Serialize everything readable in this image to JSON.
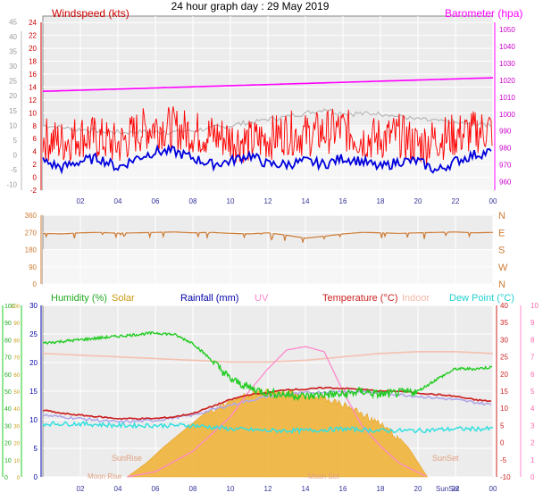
{
  "colors": {
    "wind_avg": "#0000dd",
    "wind_gust": "#ff0000",
    "baro": "#ff00ff",
    "humidity": "#22cc22",
    "solar": "#f0b030",
    "rainfall": "#0000aa",
    "uv": "#ff88cc",
    "temperature": "#cc2222",
    "indoor": "#f4c0b0",
    "dewpoint": "#33e0e0",
    "wind_dir": "#cc7a33",
    "grey_trace": "#b8b8b8",
    "plot_bg": "#ececec"
  },
  "chart_data": [
    {
      "type": "line",
      "title": "24 hour graph day : 29 May 2019",
      "left_axis": {
        "label": "Windspeed (kts)",
        "ticks": [
          "-2",
          "0",
          "2",
          "4",
          "6",
          "8",
          "10",
          "12",
          "14",
          "16",
          "18",
          "20",
          "22",
          "24"
        ],
        "range": [
          -2,
          25
        ]
      },
      "outer_left_axis": {
        "ticks": [
          "-10",
          "-5",
          "0",
          "5",
          "10",
          "15",
          "20",
          "25",
          "30",
          "35",
          "40",
          "45"
        ],
        "range": [
          -12,
          47
        ]
      },
      "right_axis": {
        "label": "Barometer (hpa)",
        "ticks": [
          "960",
          "970",
          "980",
          "990",
          "1000",
          "1010",
          "1020",
          "1030",
          "1040",
          "1050"
        ],
        "range": [
          955,
          1058
        ]
      },
      "x_ticks": [
        "02",
        "04",
        "06",
        "08",
        "10",
        "12",
        "14",
        "16",
        "18",
        "20",
        "22",
        "00"
      ],
      "x_range": [
        0,
        24
      ],
      "series": [
        {
          "name": "Barometer",
          "axis": "right",
          "x": [
            0,
            6,
            12,
            18,
            24
          ],
          "values": [
            1013.5,
            1015.5,
            1017.5,
            1019.5,
            1021.5
          ]
        },
        {
          "name": "",
          "axis": "outer-left",
          "x": [
            0,
            2,
            4,
            6,
            8,
            10,
            12,
            14,
            15,
            16,
            18,
            20,
            22,
            24
          ],
          "values": [
            10,
            8.5,
            7.5,
            7.8,
            8,
            10,
            12,
            14,
            15.5,
            14,
            14,
            12,
            11,
            10
          ]
        },
        {
          "name": "",
          "axis": "left",
          "x": [
            0,
            1,
            2,
            3,
            4,
            5,
            6,
            7,
            8,
            9,
            10,
            11,
            12,
            13,
            14,
            15,
            16,
            17,
            18,
            19,
            20,
            21,
            22,
            23,
            24
          ],
          "values": [
            6,
            5.5,
            6.5,
            6,
            5,
            7,
            8,
            7.5,
            7,
            6.5,
            6,
            5.5,
            6,
            7,
            6.5,
            7,
            7.5,
            6,
            6,
            6.5,
            5,
            6,
            6.5,
            7,
            7.5
          ]
        },
        {
          "name": "",
          "axis": "left",
          "x": [
            0,
            1,
            2,
            3,
            4,
            5,
            6,
            7,
            8,
            9,
            10,
            11,
            12,
            13,
            14,
            15,
            16,
            17,
            18,
            19,
            20,
            21,
            22,
            23,
            24
          ],
          "values": [
            2.5,
            1.5,
            2.5,
            3,
            1.5,
            3,
            4,
            4,
            3,
            2,
            2.5,
            3.5,
            2,
            2,
            2.5,
            2,
            3,
            2.5,
            1.5,
            2.5,
            2.5,
            1,
            2.5,
            3.5,
            4
          ]
        }
      ]
    },
    {
      "type": "line",
      "left_axis": {
        "ticks": [
          "0",
          "90",
          "180",
          "270",
          "360"
        ],
        "range": [
          0,
          360
        ]
      },
      "right_axis": {
        "ticks": [
          "N",
          "W",
          "S",
          "E",
          "N"
        ]
      },
      "x_range": [
        0,
        24
      ],
      "series": [
        {
          "name": "",
          "x": [
            0,
            1,
            2,
            3,
            4,
            5,
            6,
            7,
            8,
            9,
            10,
            11,
            12,
            13,
            14,
            15,
            16,
            17,
            18,
            19,
            20,
            21,
            22,
            23,
            24
          ],
          "values": [
            265,
            262,
            268,
            270,
            266,
            268,
            270,
            272,
            268,
            270,
            265,
            262,
            268,
            255,
            240,
            250,
            262,
            270,
            268,
            265,
            268,
            270,
            272,
            268,
            270
          ]
        }
      ]
    },
    {
      "type": "line",
      "legend": [
        "Humidity (%)",
        "Solar",
        "Rainfall (mm)",
        "UV",
        "Temperature (°C)",
        "Indoor",
        "Dew Point (°C)"
      ],
      "humidity_axis": {
        "ticks": [
          "0",
          "10",
          "20",
          "30",
          "40",
          "50",
          "60",
          "70",
          "80",
          "90",
          "100"
        ],
        "range": [
          0,
          100
        ]
      },
      "solar_axis": {
        "ticks": [
          "0",
          "5",
          "10",
          "15",
          "20",
          "25",
          "30",
          "35",
          "40",
          "45",
          "50",
          "55",
          "60",
          "65",
          "70",
          "75",
          "80",
          "85",
          "90",
          "95",
          "100"
        ],
        "range": [
          0,
          100
        ]
      },
      "rain_axis": {
        "ticks": [
          "0",
          "5",
          "10",
          "15",
          "20",
          "25",
          "30"
        ],
        "range": [
          0,
          30
        ]
      },
      "temp_axis": {
        "ticks": [
          "-10",
          "-5",
          "0",
          "5",
          "10",
          "15",
          "20",
          "25",
          "30",
          "35",
          "40"
        ],
        "range": [
          -10,
          40
        ]
      },
      "uv_axis": {
        "ticks": [
          "0",
          "1",
          "2",
          "3",
          "4",
          "5",
          "6",
          "7",
          "8",
          "9",
          "10"
        ],
        "range": [
          0,
          10
        ]
      },
      "x_ticks": [
        "02",
        "04",
        "06",
        "08",
        "10",
        "12",
        "14",
        "16",
        "18",
        "20",
        "22",
        "00"
      ],
      "x_range": [
        0,
        24
      ],
      "annotations": [
        "SunRise",
        "SunSet",
        "Moon Rise",
        "Moon Set",
        "SunSet"
      ],
      "series": [
        {
          "name": "Humidity (%)",
          "axis": "humidity",
          "x": [
            0,
            1,
            2,
            3,
            4,
            5,
            6,
            7,
            8,
            9,
            10,
            11,
            12,
            13,
            14,
            15,
            16,
            17,
            18,
            19,
            20,
            21,
            22,
            23,
            24
          ],
          "values": [
            78,
            79,
            80,
            81,
            82,
            83,
            84,
            83,
            78,
            68,
            57,
            52,
            49,
            48,
            47,
            48,
            48,
            50,
            48,
            49,
            50,
            57,
            63,
            63,
            64
          ]
        },
        {
          "name": "Temperature (°C)",
          "axis": "temp",
          "x": [
            0,
            1,
            2,
            3,
            4,
            5,
            6,
            7,
            8,
            9,
            10,
            11,
            12,
            13,
            14,
            15,
            16,
            17,
            18,
            19,
            20,
            21,
            22,
            23,
            24
          ],
          "values": [
            9.5,
            8.5,
            8,
            7.5,
            7,
            7,
            7,
            7.5,
            8.5,
            10.5,
            12.5,
            14,
            14.5,
            15.5,
            15.5,
            16,
            15.8,
            15.5,
            15,
            15,
            14.5,
            14,
            13.5,
            12.5,
            12
          ]
        },
        {
          "name": "Dew Point (°C)",
          "axis": "temp",
          "x": [
            0,
            2,
            4,
            6,
            8,
            10,
            12,
            14,
            16,
            18,
            20,
            22,
            24
          ],
          "values": [
            5.5,
            5.5,
            5,
            5,
            5,
            4,
            3.5,
            3.5,
            4,
            3.5,
            3.5,
            4,
            4
          ]
        },
        {
          "name": "Indoor",
          "axis": "temp",
          "x": [
            0,
            2,
            4,
            6,
            8,
            10,
            12,
            14,
            16,
            18,
            20,
            22,
            24
          ],
          "values": [
            26,
            25.5,
            25,
            24.5,
            24,
            23.5,
            23.5,
            24,
            25,
            26,
            26.5,
            26.5,
            26
          ]
        },
        {
          "name": "UV",
          "axis": "uv",
          "x": [
            4.5,
            6,
            8,
            10,
            11,
            12,
            13,
            14,
            15,
            16,
            17,
            18,
            19,
            20.5
          ],
          "values": [
            0,
            0.3,
            1.5,
            3.5,
            5,
            6.3,
            7.4,
            7.6,
            7.3,
            5,
            3,
            1.8,
            0.8,
            0
          ]
        },
        {
          "name": "Solar",
          "axis": "solar",
          "x": [
            4.5,
            5.5,
            6.5,
            7.5,
            8.5,
            9.5,
            10.5,
            11.5,
            12.5,
            13.5,
            14.5,
            15.5,
            16.5,
            17.5,
            18.5,
            19.5,
            20.5
          ],
          "values": [
            0,
            8,
            18,
            27,
            36,
            43,
            48,
            51,
            52,
            51,
            49,
            46,
            42,
            36,
            29,
            17,
            0
          ]
        },
        {
          "name": "",
          "axis": "temp",
          "x": [
            0,
            2,
            4,
            6,
            8,
            10,
            12,
            14,
            16,
            18,
            20,
            22,
            24
          ],
          "values": [
            8,
            7,
            6,
            6.5,
            8,
            11,
            13.5,
            14.5,
            15,
            14.5,
            13.5,
            12.5,
            11
          ]
        }
      ]
    }
  ]
}
